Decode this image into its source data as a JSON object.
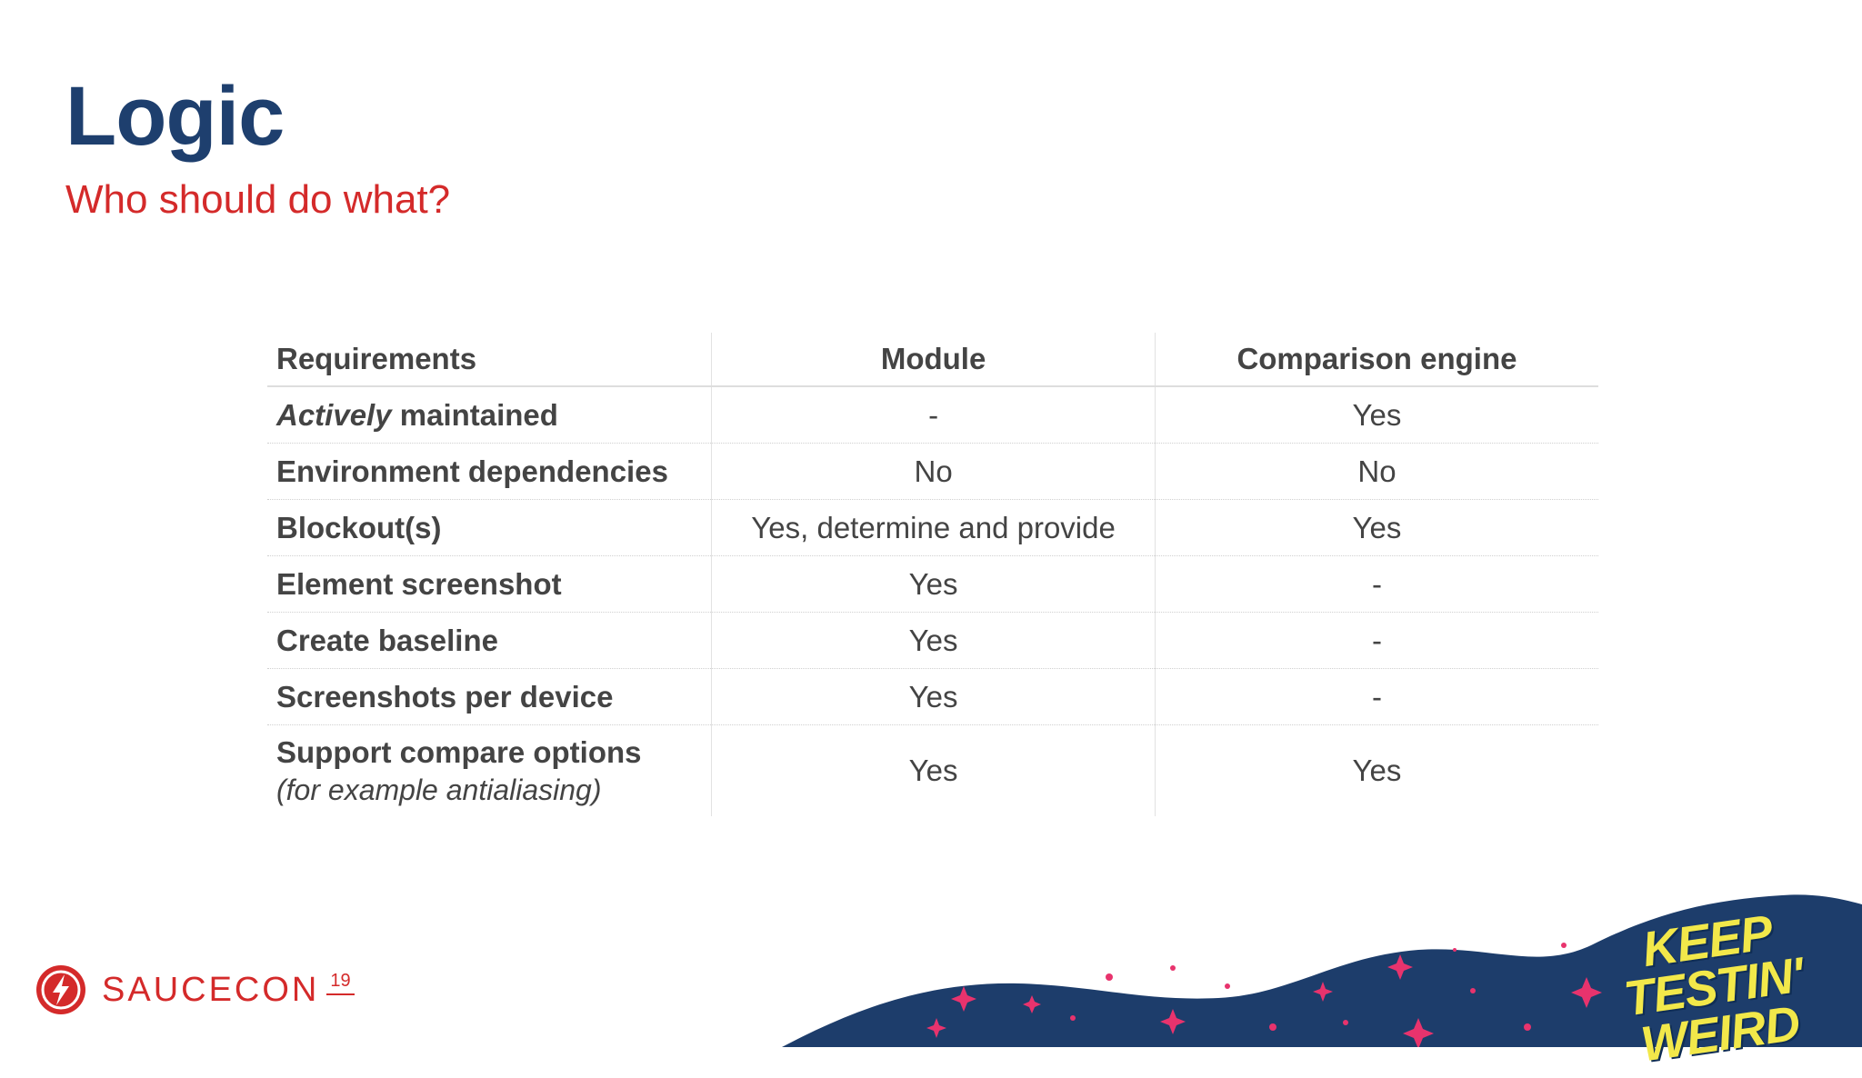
{
  "slide": {
    "title": "Logic",
    "subtitle": "Who should do what?"
  },
  "table": {
    "headers": [
      "Requirements",
      "Module",
      "Comparison engine"
    ],
    "rows": [
      {
        "req_em": "Actively",
        "req": " maintained",
        "module": "-",
        "engine": "Yes"
      },
      {
        "req": "Environment dependencies",
        "module": "No",
        "engine": "No"
      },
      {
        "req": "Blockout(s)",
        "module": "Yes, determine and provide",
        "engine": "Yes"
      },
      {
        "req": "Element screenshot",
        "module": "Yes",
        "engine": "-"
      },
      {
        "req": "Create baseline",
        "module": "Yes",
        "engine": "-"
      },
      {
        "req": "Screenshots per device",
        "module": "Yes",
        "engine": "-"
      },
      {
        "req": "Support compare options",
        "note": "(for example antialiasing)",
        "module": "Yes",
        "engine": "Yes"
      }
    ]
  },
  "footer": {
    "logo_text": "SAUCECON",
    "logo_year": "19",
    "logo_icon": "lightning-bolt-circle-icon",
    "slogan": "KEEP TESTIN' WEIRD",
    "colors": {
      "brand_red": "#d42a2a",
      "title_blue": "#1e3f6e",
      "wave_blue": "#1d3d6b",
      "slogan_yellow": "#f2e84a"
    }
  }
}
